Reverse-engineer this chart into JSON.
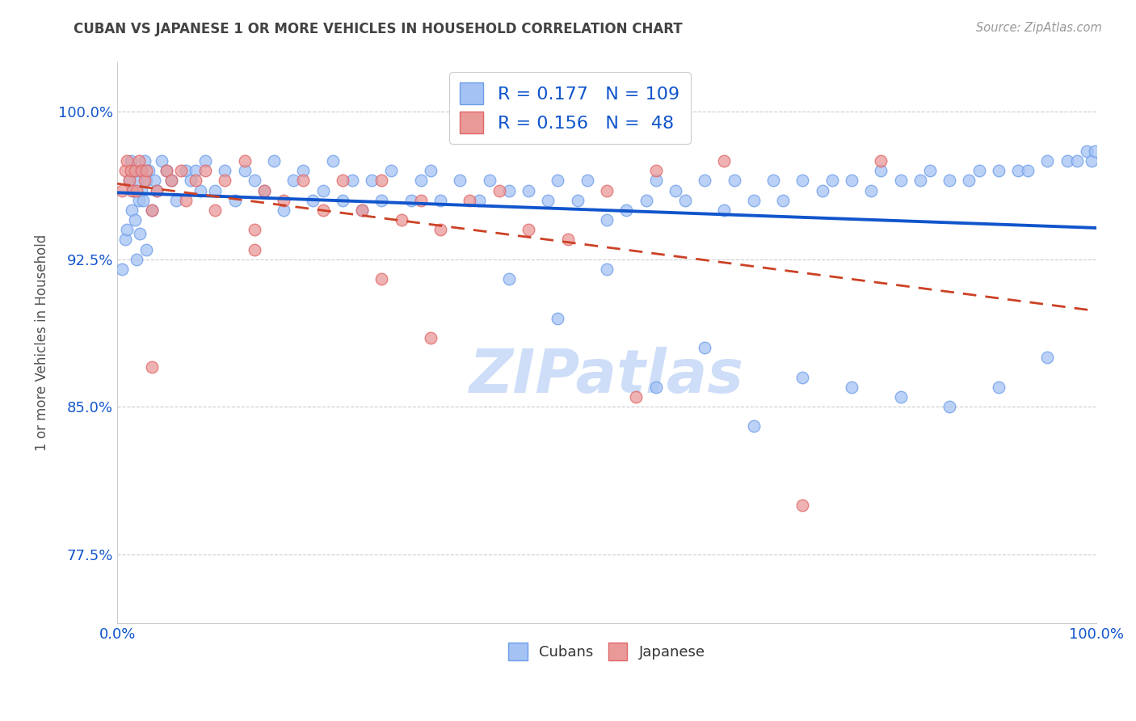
{
  "title": "CUBAN VS JAPANESE 1 OR MORE VEHICLES IN HOUSEHOLD CORRELATION CHART",
  "source": "Source: ZipAtlas.com",
  "ylabel": "1 or more Vehicles in Household",
  "xlim": [
    0.0,
    100.0
  ],
  "ylim": [
    74.0,
    102.5
  ],
  "yticks": [
    77.5,
    85.0,
    92.5,
    100.0
  ],
  "xticks": [
    0.0,
    100.0
  ],
  "xticklabels": [
    "0.0%",
    "100.0%"
  ],
  "yticklabels": [
    "77.5%",
    "85.0%",
    "92.5%",
    "100.0%"
  ],
  "cubans_R": 0.177,
  "cubans_N": 109,
  "japanese_R": 0.156,
  "japanese_N": 48,
  "blue_color": "#a4c2f4",
  "blue_edge": "#6d9eeb",
  "pink_color": "#ea9999",
  "pink_edge": "#e06666",
  "blue_line_color": "#1155cc",
  "pink_line_color": "#cc4125",
  "grid_color": "#cccccc",
  "title_color": "#434343",
  "source_color": "#999999",
  "watermark_color": "#c9daf8",
  "tick_color": "#1155cc",
  "cubans_x": [
    0.5,
    0.8,
    1.0,
    1.2,
    1.4,
    1.5,
    1.6,
    1.8,
    2.0,
    2.0,
    2.1,
    2.2,
    2.3,
    2.4,
    2.5,
    2.6,
    2.8,
    3.0,
    3.0,
    3.2,
    3.5,
    3.8,
    4.0,
    4.5,
    5.0,
    5.5,
    6.0,
    7.0,
    7.5,
    8.0,
    8.5,
    9.0,
    10.0,
    11.0,
    12.0,
    13.0,
    14.0,
    15.0,
    16.0,
    17.0,
    18.0,
    19.0,
    20.0,
    21.0,
    22.0,
    23.0,
    24.0,
    25.0,
    26.0,
    27.0,
    28.0,
    30.0,
    31.0,
    32.0,
    33.0,
    35.0,
    37.0,
    38.0,
    40.0,
    42.0,
    44.0,
    45.0,
    47.0,
    48.0,
    50.0,
    52.0,
    54.0,
    55.0,
    57.0,
    58.0,
    60.0,
    62.0,
    63.0,
    65.0,
    67.0,
    68.0,
    70.0,
    72.0,
    73.0,
    75.0,
    77.0,
    78.0,
    80.0,
    82.0,
    83.0,
    85.0,
    87.0,
    88.0,
    90.0,
    92.0,
    93.0,
    95.0,
    97.0,
    98.0,
    99.0,
    99.5,
    99.8,
    40.0,
    45.0,
    50.0,
    55.0,
    60.0,
    65.0,
    70.0,
    75.0,
    80.0,
    85.0,
    90.0,
    95.0
  ],
  "cubans_y": [
    92.0,
    93.5,
    94.0,
    96.5,
    97.5,
    95.0,
    96.0,
    94.5,
    92.5,
    97.0,
    96.5,
    95.5,
    93.8,
    97.0,
    96.0,
    95.5,
    97.5,
    93.0,
    96.5,
    97.0,
    95.0,
    96.5,
    96.0,
    97.5,
    97.0,
    96.5,
    95.5,
    97.0,
    96.5,
    97.0,
    96.0,
    97.5,
    96.0,
    97.0,
    95.5,
    97.0,
    96.5,
    96.0,
    97.5,
    95.0,
    96.5,
    97.0,
    95.5,
    96.0,
    97.5,
    95.5,
    96.5,
    95.0,
    96.5,
    95.5,
    97.0,
    95.5,
    96.5,
    97.0,
    95.5,
    96.5,
    95.5,
    96.5,
    96.0,
    96.0,
    95.5,
    96.5,
    95.5,
    96.5,
    94.5,
    95.0,
    95.5,
    96.5,
    96.0,
    95.5,
    96.5,
    95.0,
    96.5,
    95.5,
    96.5,
    95.5,
    96.5,
    96.0,
    96.5,
    96.5,
    96.0,
    97.0,
    96.5,
    96.5,
    97.0,
    96.5,
    96.5,
    97.0,
    97.0,
    97.0,
    97.0,
    97.5,
    97.5,
    97.5,
    98.0,
    97.5,
    98.0,
    91.5,
    89.5,
    92.0,
    86.0,
    88.0,
    84.0,
    86.5,
    86.0,
    85.5,
    85.0,
    86.0,
    87.5
  ],
  "japanese_x": [
    0.5,
    0.8,
    1.0,
    1.2,
    1.4,
    1.6,
    1.8,
    2.0,
    2.2,
    2.5,
    2.8,
    3.0,
    3.5,
    4.0,
    5.0,
    5.5,
    6.5,
    7.0,
    8.0,
    9.0,
    10.0,
    11.0,
    13.0,
    14.0,
    15.0,
    17.0,
    19.0,
    21.0,
    23.0,
    25.0,
    27.0,
    29.0,
    31.0,
    33.0,
    36.0,
    39.0,
    42.0,
    46.0,
    50.0,
    55.0,
    62.0,
    70.0,
    78.0,
    53.0,
    32.0,
    27.0,
    14.0,
    3.5
  ],
  "japanese_y": [
    96.0,
    97.0,
    97.5,
    96.5,
    97.0,
    96.0,
    97.0,
    96.0,
    97.5,
    97.0,
    96.5,
    97.0,
    95.0,
    96.0,
    97.0,
    96.5,
    97.0,
    95.5,
    96.5,
    97.0,
    95.0,
    96.5,
    97.5,
    94.0,
    96.0,
    95.5,
    96.5,
    95.0,
    96.5,
    95.0,
    96.5,
    94.5,
    95.5,
    94.0,
    95.5,
    96.0,
    94.0,
    93.5,
    96.0,
    97.0,
    97.5,
    80.0,
    97.5,
    85.5,
    88.5,
    91.5,
    93.0,
    87.0
  ]
}
